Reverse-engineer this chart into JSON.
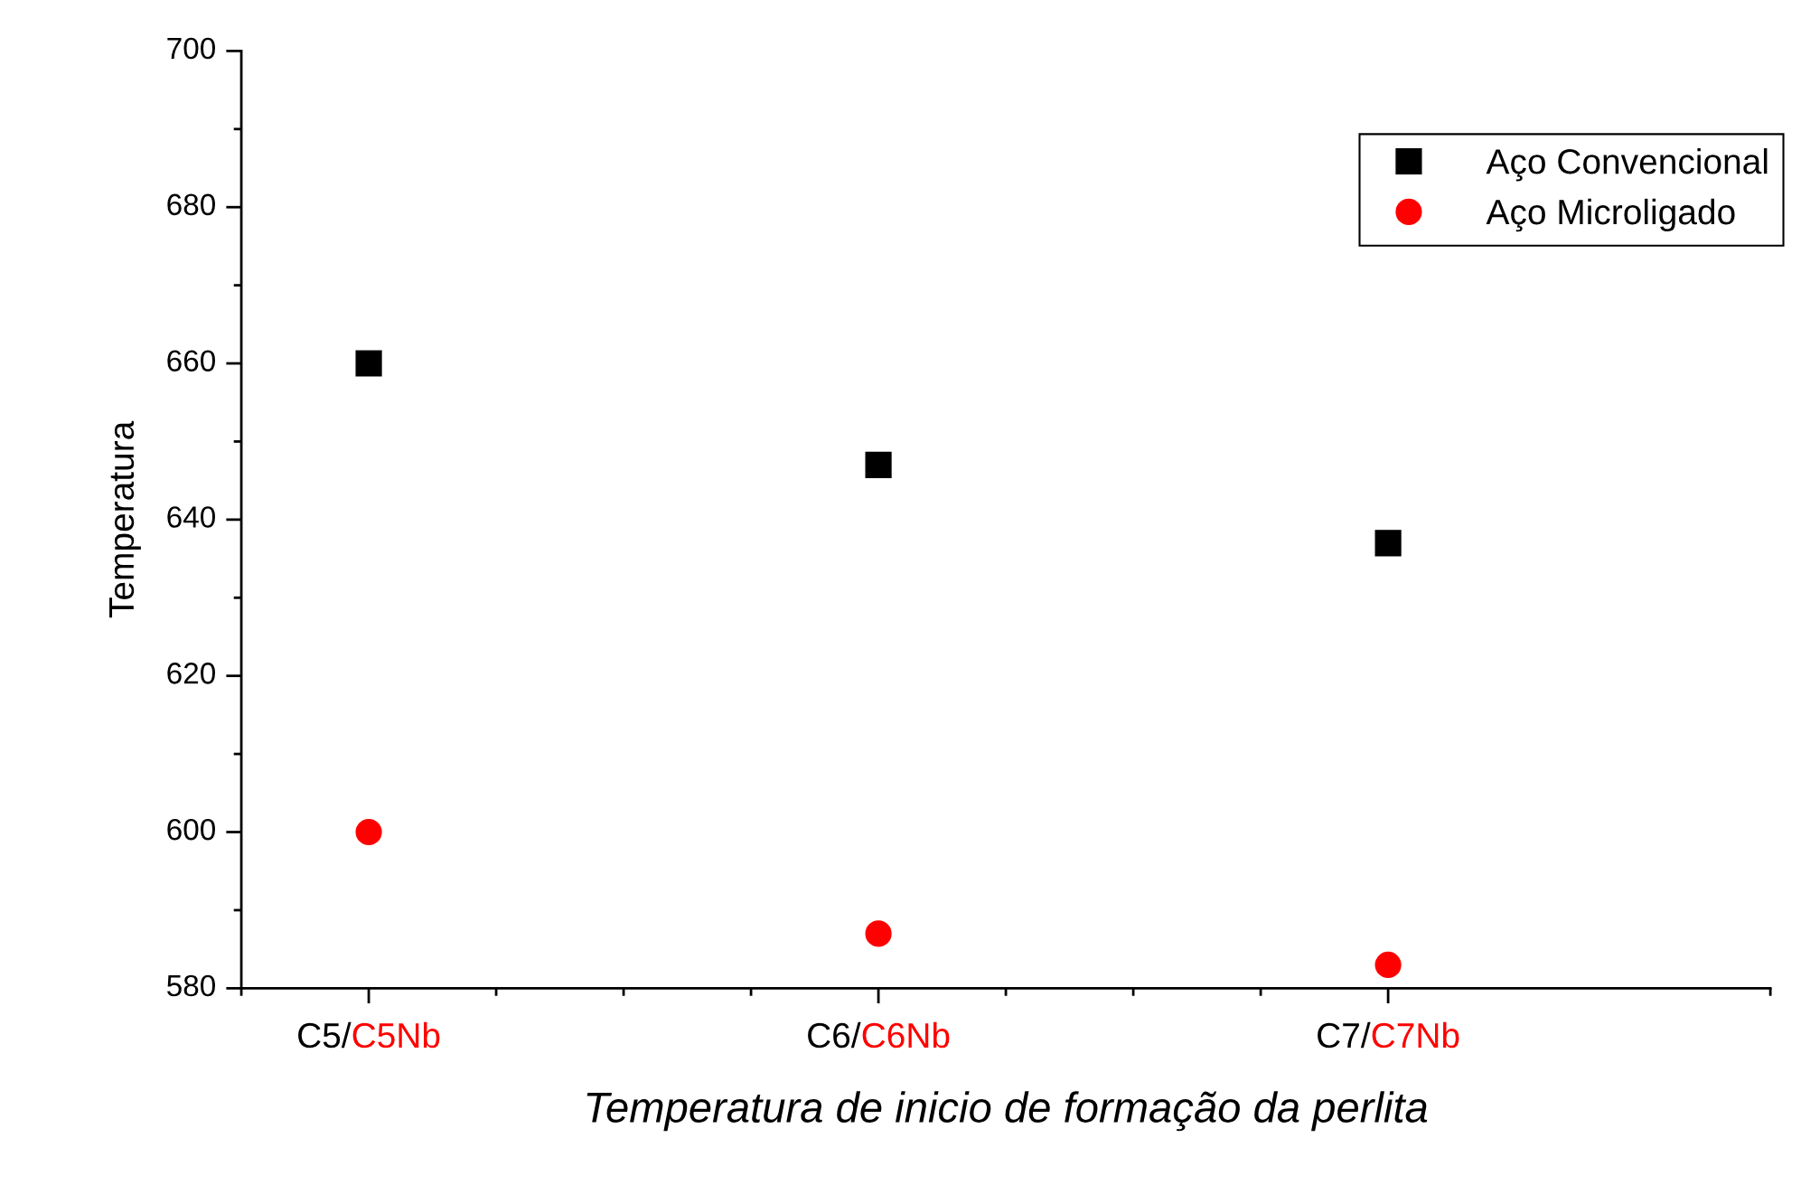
{
  "chart_data": {
    "type": "scatter",
    "xlabel": "Temperatura de inicio de formação da perlita",
    "ylabel": "Temperatura",
    "categories": [
      "C5/C5Nb",
      "C6/C6Nb",
      "C7/C7Nb"
    ],
    "series": [
      {
        "name": "Aço Convencional",
        "color": "#000000",
        "marker": "square",
        "values": [
          660,
          647,
          637
        ]
      },
      {
        "name": "Aço Microligado",
        "color": "#ff0000",
        "marker": "circle",
        "values": [
          600,
          587,
          583
        ]
      }
    ],
    "ylim": [
      580,
      700
    ],
    "yticks": [
      580,
      600,
      620,
      640,
      660,
      680,
      700
    ],
    "grid": false,
    "legend": "top right"
  }
}
